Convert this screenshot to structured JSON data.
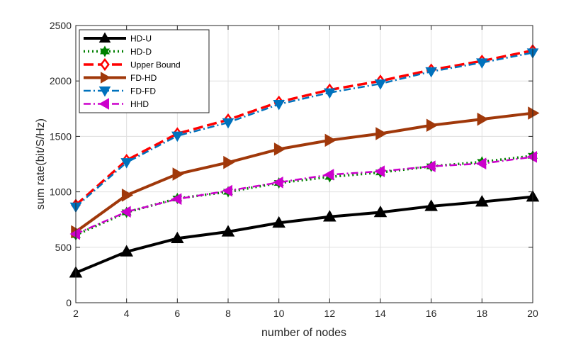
{
  "chart_data": {
    "type": "line",
    "title": "",
    "xlabel": "number of nodes",
    "ylabel": "sum rate(bit/S/Hz)",
    "xlim": [
      2,
      20
    ],
    "ylim": [
      0,
      2500
    ],
    "xticks": [
      2,
      4,
      6,
      8,
      10,
      12,
      14,
      16,
      18,
      20
    ],
    "yticks": [
      0,
      500,
      1000,
      1500,
      2000,
      2500
    ],
    "grid": true,
    "legend_position": "top-left",
    "x": [
      2,
      4,
      6,
      8,
      10,
      12,
      14,
      16,
      18,
      20
    ],
    "series": [
      {
        "name": "HD-U",
        "color": "#000000",
        "line": "solid",
        "marker": "triangle-up",
        "values": [
          270,
          460,
          580,
          640,
          720,
          775,
          815,
          870,
          910,
          955
        ]
      },
      {
        "name": "HD-D",
        "color": "#008000",
        "line": "dotted",
        "marker": "hexagram",
        "values": [
          610,
          815,
          940,
          1000,
          1080,
          1135,
          1175,
          1230,
          1270,
          1325
        ]
      },
      {
        "name": "Upper Bound",
        "color": "#ff0000",
        "line": "dashed",
        "marker": "diamond",
        "values": [
          880,
          1285,
          1525,
          1650,
          1810,
          1920,
          2000,
          2100,
          2180,
          2275
        ]
      },
      {
        "name": "FD-HD",
        "color": "#a0380a",
        "line": "solid",
        "marker": "triangle-right",
        "values": [
          640,
          970,
          1160,
          1265,
          1385,
          1465,
          1525,
          1600,
          1655,
          1710
        ]
      },
      {
        "name": "FD-FD",
        "color": "#0072bd",
        "line": "dashdot",
        "marker": "triangle-down",
        "values": [
          865,
          1265,
          1505,
          1625,
          1790,
          1895,
          1975,
          2085,
          2165,
          2255
        ]
      },
      {
        "name": "HHD",
        "color": "#cc00cc",
        "line": "dashdot",
        "marker": "triangle-left",
        "values": [
          620,
          820,
          935,
          1010,
          1085,
          1155,
          1185,
          1230,
          1255,
          1315
        ]
      }
    ]
  }
}
